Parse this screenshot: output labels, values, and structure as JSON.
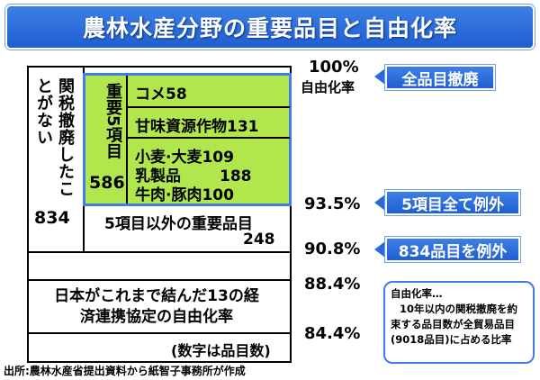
{
  "title": "農林水産分野の重要品目と自由化率",
  "left_column": {
    "label": "関税撤廃したことがない",
    "count": "834"
  },
  "five_items": {
    "label": "重要5項目",
    "count": "586",
    "items": [
      {
        "name": "コメ",
        "value": "58"
      },
      {
        "name": "甘味資源作物",
        "value": "131"
      },
      {
        "name": "小麦·大麦",
        "value": "109"
      },
      {
        "name": "乳製品",
        "value": "188"
      },
      {
        "name": "牛肉·豚肉",
        "value": "100"
      }
    ]
  },
  "other_important": {
    "label": "5項目以外の重要品目",
    "count": "248"
  },
  "agreement_label": "日本がこれまで結んだ13の経済連携協定の自由化率",
  "unit_note": "(数字は品目数)",
  "percentages": [
    {
      "value": "100%",
      "sublabel": "自由化率"
    },
    {
      "value": "93.5%"
    },
    {
      "value": "90.8%"
    },
    {
      "value": "88.4%"
    },
    {
      "value": "84.4%"
    }
  ],
  "callouts": [
    "全品目撤廃",
    "5項目全て例外",
    "834品目を例外"
  ],
  "definition": {
    "title": "自由化率…",
    "lines": [
      "10年以内の関税撤廃を約",
      "束する品目数が全貿易品目",
      "(9018品目)に占める比率"
    ]
  },
  "source_note": "出所:農林水産省提出資料から紙智子事務所が作成",
  "colors": {
    "title_bar": "#2a6ad8",
    "highlight": "#b2e64d",
    "accent_border": "#3f7ee8"
  }
}
